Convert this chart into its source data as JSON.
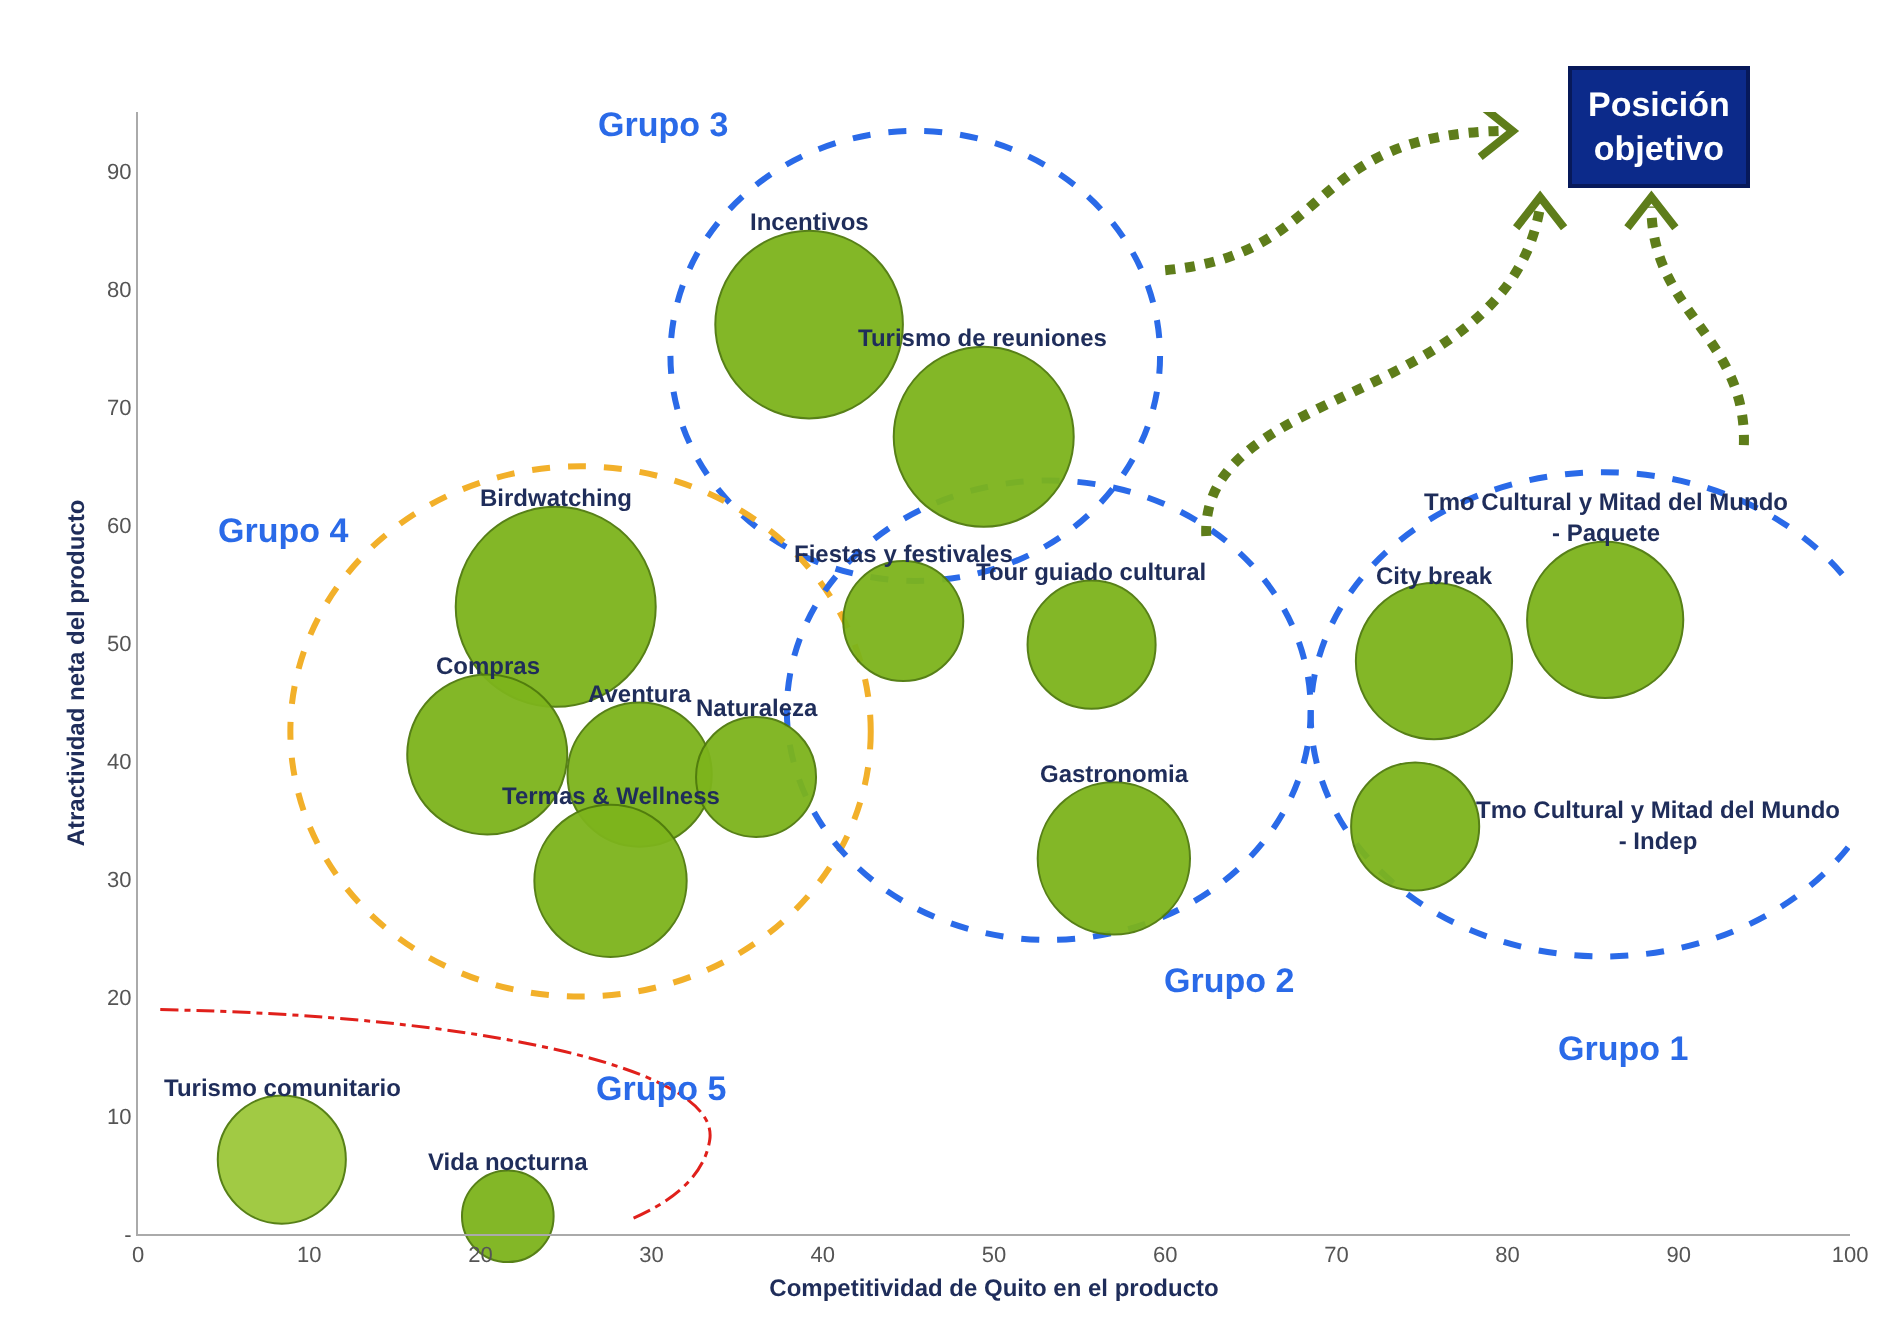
{
  "chart_data": {
    "type": "bubble",
    "xlabel": "Competitividad de Quito en el producto",
    "ylabel": "Atractividad neta del producto",
    "xlim": [
      0,
      100
    ],
    "xticks": [
      0,
      10,
      20,
      30,
      40,
      50,
      60,
      70,
      80,
      90,
      100
    ],
    "ylim": [
      0,
      95
    ],
    "yticks": [
      {
        "value": 0,
        "label": "-"
      },
      10,
      20,
      30,
      40,
      50,
      60,
      70,
      80,
      90
    ],
    "grid": false,
    "legend": false,
    "series": [
      {
        "name": "Incentivos",
        "color": "#7db41c",
        "x": [
          39.2
        ],
        "values": [
          77.0
        ],
        "sizes": [
          0.88
        ]
      },
      {
        "name": "Turismo de reuniones",
        "color": "#7db41c",
        "x": [
          49.4
        ],
        "values": [
          67.5
        ],
        "sizes": [
          0.81
        ]
      },
      {
        "name": "Birdwatching",
        "color": "#7db41c",
        "x": [
          24.4
        ],
        "values": [
          53.1
        ],
        "sizes": [
          1
        ]
      },
      {
        "name": "Compras",
        "color": "#7db41c",
        "x": [
          20.4
        ],
        "values": [
          40.6
        ],
        "sizes": [
          0.64
        ]
      },
      {
        "name": "Aventura",
        "color": "#7db41c",
        "x": [
          29.3
        ],
        "values": [
          38.9
        ],
        "sizes": [
          0.52
        ]
      },
      {
        "name": "Naturaleza",
        "color": "#7db41c",
        "x": [
          36.1
        ],
        "values": [
          38.7
        ],
        "sizes": [
          0.36
        ]
      },
      {
        "name": "Termas & Wellness",
        "color": "#7db41c",
        "x": [
          27.6
        ],
        "values": [
          29.9
        ],
        "sizes": [
          0.58
        ]
      },
      {
        "name": "Fiestas y festivales",
        "color": "#7db41c",
        "x": [
          44.7
        ],
        "values": [
          51.9
        ],
        "sizes": [
          0.36
        ]
      },
      {
        "name": "Tour guiado cultural",
        "color": "#7db41c",
        "x": [
          55.7
        ],
        "values": [
          49.9
        ],
        "sizes": [
          0.41
        ]
      },
      {
        "name": "Gastronomia",
        "color": "#7db41c",
        "x": [
          57.0
        ],
        "values": [
          31.8
        ],
        "sizes": [
          0.58
        ]
      },
      {
        "name": "City break",
        "color": "#7db41c",
        "x": [
          75.7
        ],
        "values": [
          48.5
        ],
        "sizes": [
          0.61
        ]
      },
      {
        "name": "Tmo Cultural y Mitad del Mundo  - Paquete",
        "color": "#7db41c",
        "x": [
          85.7
        ],
        "values": [
          52.0
        ],
        "sizes": [
          0.61
        ]
      },
      {
        "name": "Tmo Cultural y Mitad del Mundo  - Indep",
        "color": "#7db41c",
        "x": [
          74.6
        ],
        "values": [
          34.5
        ],
        "sizes": [
          0.41
        ]
      },
      {
        "name": "Turismo comunitario",
        "color": "#9cc83a",
        "x": [
          8.4
        ],
        "values": [
          6.3
        ],
        "sizes": [
          0.41
        ]
      },
      {
        "name": "Vida nocturna",
        "color": "#7db41c",
        "x": [
          21.6
        ],
        "values": [
          1.5
        ],
        "sizes": [
          0.21
        ]
      }
    ],
    "annotations": [
      "Grupo 3",
      "Grupo 4",
      "Grupo 2",
      "Grupo 1",
      "Grupo 5",
      "Posición objetivo"
    ]
  }
}
